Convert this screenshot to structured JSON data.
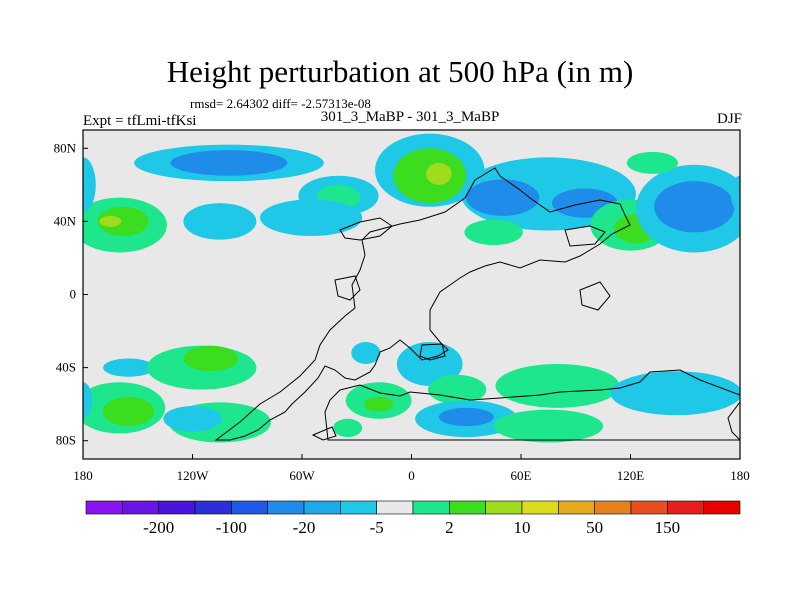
{
  "header": {
    "title": "Height perturbation at 500 hPa (in m)",
    "stats": "rmsd= 2.64302 diff= -2.57313e-08",
    "experiment": "Expt = tfLmi-tfKsi",
    "comparison": "301_3_MaBP - 301_3_MaBP",
    "season": "DJF"
  },
  "chart_data": {
    "type": "heatmap",
    "title": "Height perturbation at 500 hPa (in m)",
    "x_axis": {
      "range": [
        -180,
        180
      ],
      "ticks": [
        -180,
        -120,
        -60,
        0,
        60,
        120,
        180
      ],
      "tick_labels": [
        "180",
        "120W",
        "60W",
        "0",
        "60E",
        "120E",
        "180"
      ]
    },
    "y_axis": {
      "range": [
        -90,
        90
      ],
      "ticks": [
        80,
        40,
        0,
        -40,
        -80
      ],
      "tick_labels": [
        "80N",
        "40N",
        "0",
        "40S",
        "80S"
      ]
    },
    "colorbar": {
      "colors": [
        "#8a14f0",
        "#6a14e6",
        "#4a14dc",
        "#2e2ed8",
        "#1e5ae6",
        "#1e8ce8",
        "#1eaae8",
        "#1ec8e6",
        "#e8e8e8",
        "#1ee68c",
        "#3cdc1e",
        "#a0dc1e",
        "#dcdc1e",
        "#e6aa1e",
        "#e6821e",
        "#e6501e",
        "#e61e1e",
        "#e60000"
      ],
      "labels": [
        "-200",
        "-100",
        "-20",
        "-5",
        "2",
        "10",
        "50",
        "150"
      ]
    },
    "field_blobs": [
      {
        "lon": -100,
        "lat": 72,
        "rx": 52,
        "ry": 10,
        "level": -5
      },
      {
        "lon": -100,
        "lat": 72,
        "rx": 32,
        "ry": 7,
        "level": -20
      },
      {
        "lon": -40,
        "lat": 54,
        "rx": 22,
        "ry": 11,
        "level": -5
      },
      {
        "lon": -40,
        "lat": 53,
        "rx": 12,
        "ry": 7,
        "level": 2
      },
      {
        "lon": 10,
        "lat": 68,
        "rx": 30,
        "ry": 20,
        "level": -5
      },
      {
        "lon": 10,
        "lat": 65,
        "rx": 20,
        "ry": 15,
        "level": 10
      },
      {
        "lon": 15,
        "lat": 66,
        "rx": 7,
        "ry": 6,
        "level": 50
      },
      {
        "lon": 75,
        "lat": 55,
        "rx": 48,
        "ry": 20,
        "level": -5
      },
      {
        "lon": 50,
        "lat": 53,
        "rx": 20,
        "ry": 10,
        "level": -20
      },
      {
        "lon": 95,
        "lat": 50,
        "rx": 18,
        "ry": 8,
        "level": -20
      },
      {
        "lon": 45,
        "lat": 34,
        "rx": 16,
        "ry": 7,
        "level": 2
      },
      {
        "lon": 120,
        "lat": 38,
        "rx": 22,
        "ry": 14,
        "level": 2
      },
      {
        "lon": 123,
        "lat": 36,
        "rx": 12,
        "ry": 8,
        "level": 10
      },
      {
        "lon": 155,
        "lat": 47,
        "rx": 32,
        "ry": 24,
        "level": -5
      },
      {
        "lon": 155,
        "lat": 48,
        "rx": 22,
        "ry": 14,
        "level": -20
      },
      {
        "lon": 132,
        "lat": 72,
        "rx": 14,
        "ry": 6,
        "level": 2
      },
      {
        "lon": -160,
        "lat": 38,
        "rx": 26,
        "ry": 15,
        "level": 2
      },
      {
        "lon": -158,
        "lat": 40,
        "rx": 14,
        "ry": 8,
        "level": 10
      },
      {
        "lon": -165,
        "lat": 40,
        "rx": 6,
        "ry": 3,
        "level": 50
      },
      {
        "lon": -105,
        "lat": 40,
        "rx": 20,
        "ry": 10,
        "level": -5
      },
      {
        "lon": -55,
        "lat": 42,
        "rx": 28,
        "ry": 10,
        "level": -5
      },
      {
        "lon": -155,
        "lat": -40,
        "rx": 14,
        "ry": 5,
        "level": -5
      },
      {
        "lon": -115,
        "lat": -40,
        "rx": 30,
        "ry": 12,
        "level": 2
      },
      {
        "lon": -110,
        "lat": -35,
        "rx": 15,
        "ry": 7,
        "level": 10
      },
      {
        "lon": -160,
        "lat": -62,
        "rx": 25,
        "ry": 14,
        "level": 2
      },
      {
        "lon": -155,
        "lat": -64,
        "rx": 14,
        "ry": 8,
        "level": 10
      },
      {
        "lon": -105,
        "lat": -70,
        "rx": 28,
        "ry": 11,
        "level": 2
      },
      {
        "lon": -120,
        "lat": -68,
        "rx": 16,
        "ry": 7,
        "level": -5
      },
      {
        "lon": -25,
        "lat": -32,
        "rx": 8,
        "ry": 6,
        "level": -5
      },
      {
        "lon": -18,
        "lat": -58,
        "rx": 18,
        "ry": 10,
        "level": 2
      },
      {
        "lon": -18,
        "lat": -60,
        "rx": 8,
        "ry": 4,
        "level": 10
      },
      {
        "lon": -35,
        "lat": -73,
        "rx": 8,
        "ry": 5,
        "level": 2
      },
      {
        "lon": 10,
        "lat": -38,
        "rx": 18,
        "ry": 12,
        "level": -5
      },
      {
        "lon": 25,
        "lat": -52,
        "rx": 16,
        "ry": 8,
        "level": 2
      },
      {
        "lon": 30,
        "lat": -68,
        "rx": 28,
        "ry": 10,
        "level": -5
      },
      {
        "lon": 30,
        "lat": -67,
        "rx": 15,
        "ry": 5,
        "level": -20
      },
      {
        "lon": 80,
        "lat": -50,
        "rx": 34,
        "ry": 12,
        "level": 2
      },
      {
        "lon": 75,
        "lat": -72,
        "rx": 30,
        "ry": 9,
        "level": 2
      },
      {
        "lon": 145,
        "lat": -54,
        "rx": 36,
        "ry": 12,
        "level": -5
      },
      {
        "lon": -180,
        "lat": 60,
        "rx": 7,
        "ry": 15,
        "level": -5
      },
      {
        "lon": 180,
        "lat": 55,
        "rx": 5,
        "ry": 10,
        "level": -5
      },
      {
        "lon": -180,
        "lat": -58,
        "rx": 5,
        "ry": 10,
        "level": -5
      }
    ]
  }
}
